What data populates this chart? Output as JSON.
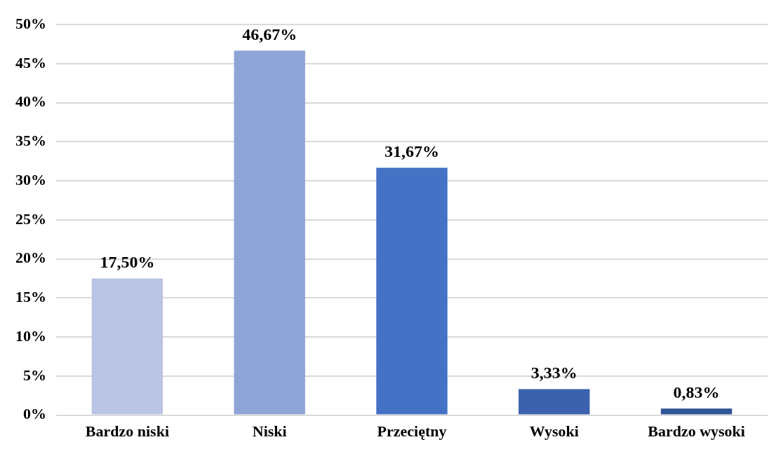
{
  "chart_data": {
    "type": "bar",
    "categories": [
      "Bardzo niski",
      "Niski",
      "Przeciętny",
      "Wysoki",
      "Bardzo wysoki"
    ],
    "values": [
      17.5,
      46.67,
      31.67,
      3.33,
      0.83
    ],
    "colors": [
      "#bac4e3",
      "#8fa4d6",
      "#4472c4",
      "#3a62ad",
      "#2f5597"
    ],
    "value_labels": [
      "17,50%",
      "46,67%",
      "31,67%",
      "3,33%",
      "0,83%"
    ],
    "ylim": [
      0,
      50
    ],
    "yticks": [
      {
        "value": 0,
        "label": "0%"
      },
      {
        "value": 5,
        "label": "5%"
      },
      {
        "value": 10,
        "label": "10%"
      },
      {
        "value": 15,
        "label": "15%"
      },
      {
        "value": 20,
        "label": "20%"
      },
      {
        "value": 25,
        "label": "25%"
      },
      {
        "value": 30,
        "label": "30%"
      },
      {
        "value": 35,
        "label": "35%"
      },
      {
        "value": 40,
        "label": "40%"
      },
      {
        "value": 45,
        "label": "45%"
      },
      {
        "value": 50,
        "label": "50%"
      }
    ],
    "grid": "y",
    "legend": false
  }
}
